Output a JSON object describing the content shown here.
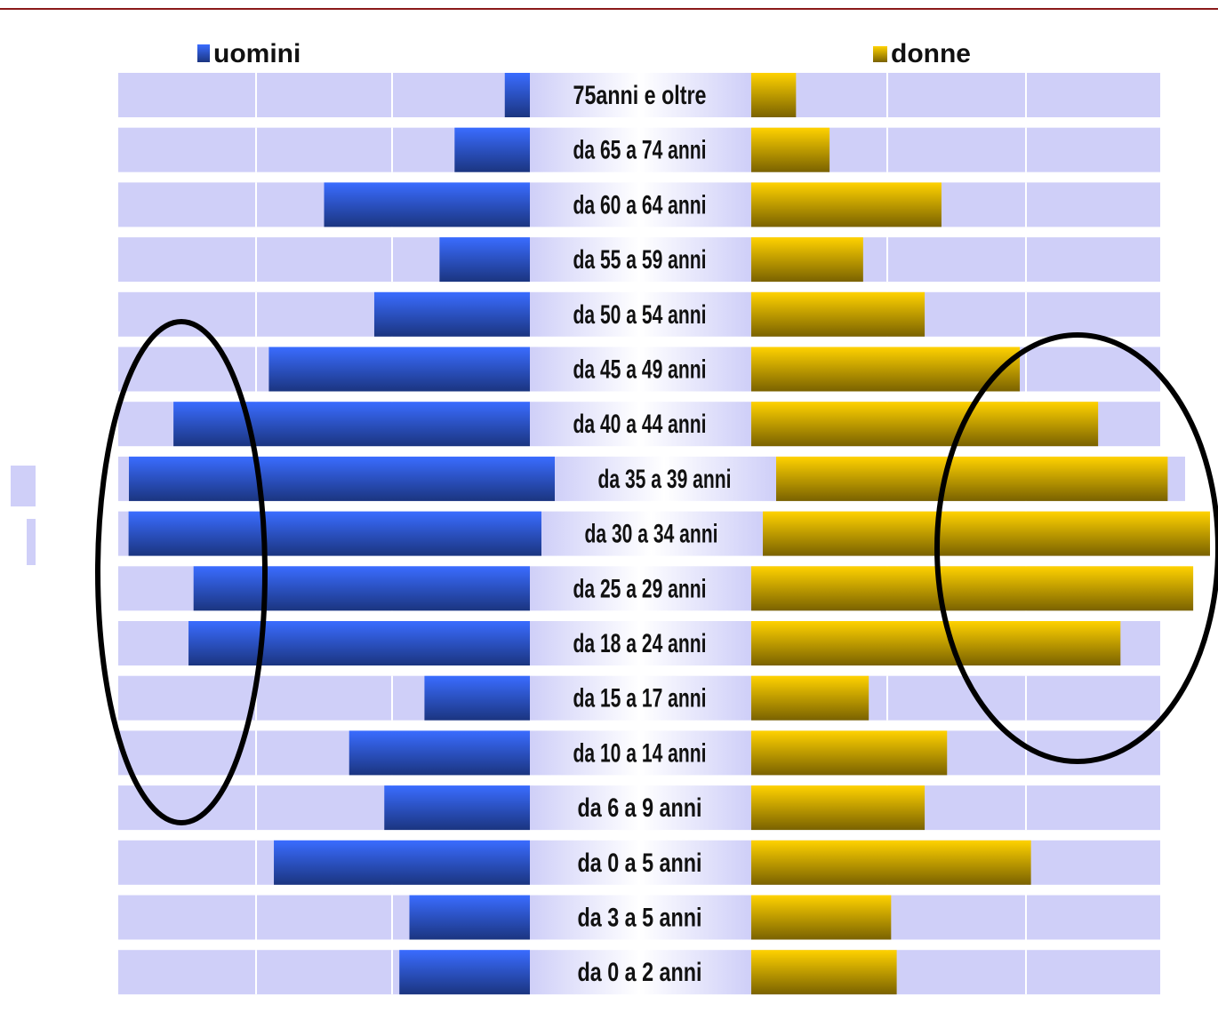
{
  "colors": {
    "top_line": "#8b1a1a",
    "track": "#cfcff8",
    "track_divider": "#ffffff",
    "men_top": "#3a6cff",
    "men_bottom": "#1b3580",
    "women_top": "#ffd200",
    "women_bottom": "#7a6200",
    "ellipse": "#000000",
    "label": "#111111"
  },
  "chart_data": {
    "type": "bar",
    "orientation": "horizontal-pyramid",
    "legend": {
      "men": "uomini",
      "women": "donne"
    },
    "categories": [
      "75anni e oltre",
      "da 65 a 74 anni",
      "da 60 a 64 anni",
      "da 55 a 59 anni",
      "da 50 a 54 anni",
      "da 45 a 49 anni",
      "da 40 a 44 anni",
      "da 35 a 39 anni",
      "da 30 a 34 anni",
      "da 25 a 29 anni",
      "da 18 a 24 anni",
      "da 15 a 17 anni",
      "da 10 a 14 anni",
      "da 6 a 9 anni",
      "da 0 a 5 anni",
      "da 3 a 5 anni",
      "da 0 a 2 anni"
    ],
    "series": [
      {
        "name": "uomini",
        "values": [
          0.5,
          1.5,
          4.1,
          1.8,
          3.1,
          5.2,
          7.1,
          8.0,
          8.0,
          6.7,
          6.8,
          2.1,
          3.6,
          2.9,
          5.1,
          2.4,
          2.6
        ]
      },
      {
        "name": "donne",
        "values": [
          0.8,
          1.4,
          3.4,
          2.0,
          3.1,
          4.8,
          6.2,
          7.4,
          8.2,
          7.9,
          6.6,
          2.1,
          3.5,
          3.1,
          5.0,
          2.5,
          2.6
        ]
      }
    ],
    "grid": true
  }
}
